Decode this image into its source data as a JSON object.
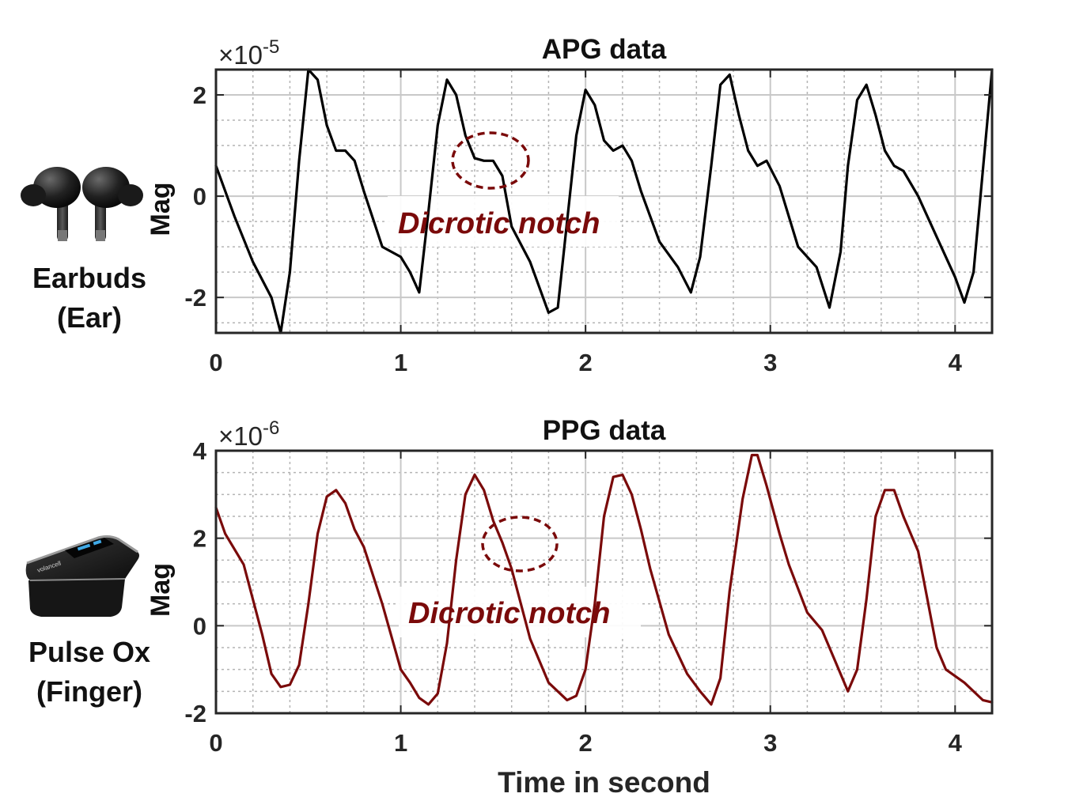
{
  "devices": [
    {
      "label_line1": "Earbuds",
      "label_line2": "(Ear)",
      "icon": "earbuds-icon"
    },
    {
      "label_line1": "Pulse Ox",
      "label_line2": "(Finger)",
      "icon": "pulse-oximeter-icon",
      "brand_text": "volancell"
    }
  ],
  "colors": {
    "apg_line": "#000000",
    "ppg_line": "#7a0a0a",
    "annotation": "#7a0a0a",
    "grid_major": "#c8c8c8",
    "grid_minor": "#b4b4b4"
  },
  "chart_data": [
    {
      "type": "line",
      "title": "APG data",
      "ylabel": "Mag",
      "xlabel": "",
      "exponent_label": "×10",
      "exponent_power": "-5",
      "xlim": [
        0,
        4.2
      ],
      "ylim": [
        -2.7,
        2.5
      ],
      "xticks": [
        0,
        1,
        2,
        3,
        4
      ],
      "yticks": [
        -2,
        0,
        2
      ],
      "grid": true,
      "minor_grid": true,
      "annotation": {
        "text": "Dicrotic notch",
        "marker": "dashed ellipse",
        "x": 1.5,
        "y": 0.75
      },
      "series": [
        {
          "color": "#000000",
          "x": [
            0,
            0.1,
            0.2,
            0.3,
            0.35,
            0.4,
            0.45,
            0.5,
            0.55,
            0.6,
            0.65,
            0.7,
            0.75,
            0.8,
            0.9,
            1.0,
            1.05,
            1.1,
            1.15,
            1.2,
            1.25,
            1.3,
            1.35,
            1.4,
            1.45,
            1.5,
            1.55,
            1.6,
            1.7,
            1.8,
            1.85,
            1.9,
            1.95,
            2.0,
            2.05,
            2.1,
            2.15,
            2.2,
            2.25,
            2.3,
            2.4,
            2.5,
            2.57,
            2.62,
            2.68,
            2.73,
            2.78,
            2.83,
            2.88,
            2.93,
            2.98,
            3.05,
            3.15,
            3.25,
            3.32,
            3.38,
            3.42,
            3.47,
            3.52,
            3.57,
            3.62,
            3.67,
            3.72,
            3.8,
            3.9,
            4.0,
            4.05,
            4.1,
            4.15,
            4.2
          ],
          "y": [
            0.6,
            -0.4,
            -1.3,
            -2.0,
            -2.7,
            -1.5,
            0.7,
            2.5,
            2.3,
            1.4,
            0.9,
            0.9,
            0.7,
            0.1,
            -1.0,
            -1.2,
            -1.5,
            -1.9,
            -0.3,
            1.4,
            2.3,
            2.0,
            1.2,
            0.75,
            0.7,
            0.7,
            0.4,
            -0.6,
            -1.3,
            -2.3,
            -2.2,
            -0.5,
            1.2,
            2.1,
            1.8,
            1.1,
            0.9,
            1.0,
            0.7,
            0.1,
            -0.9,
            -1.4,
            -1.9,
            -1.2,
            0.6,
            2.2,
            2.4,
            1.6,
            0.9,
            0.6,
            0.7,
            0.2,
            -1.0,
            -1.4,
            -2.2,
            -1.1,
            0.6,
            1.9,
            2.2,
            1.6,
            0.9,
            0.6,
            0.5,
            0.0,
            -0.8,
            -1.6,
            -2.1,
            -1.5,
            0.5,
            2.5
          ]
        }
      ]
    },
    {
      "type": "line",
      "title": "PPG data",
      "ylabel": "Mag",
      "xlabel": "Time in second",
      "exponent_label": "×10",
      "exponent_power": "-6",
      "xlim": [
        0,
        4.2
      ],
      "ylim": [
        -2,
        4
      ],
      "xticks": [
        0,
        1,
        2,
        3,
        4
      ],
      "yticks": [
        -2,
        0,
        2,
        4
      ],
      "grid": true,
      "minor_grid": true,
      "annotation": {
        "text": "Dicrotic notch",
        "marker": "dashed ellipse",
        "x": 1.65,
        "y": 1.9
      },
      "series": [
        {
          "color": "#7a0a0a",
          "x": [
            0,
            0.05,
            0.15,
            0.25,
            0.3,
            0.35,
            0.4,
            0.45,
            0.5,
            0.55,
            0.6,
            0.65,
            0.7,
            0.75,
            0.8,
            0.9,
            1.0,
            1.05,
            1.1,
            1.15,
            1.2,
            1.25,
            1.3,
            1.35,
            1.4,
            1.45,
            1.5,
            1.55,
            1.6,
            1.65,
            1.7,
            1.8,
            1.9,
            1.95,
            2.0,
            2.05,
            2.1,
            2.15,
            2.2,
            2.25,
            2.3,
            2.35,
            2.45,
            2.55,
            2.62,
            2.68,
            2.73,
            2.78,
            2.85,
            2.9,
            2.93,
            2.98,
            3.05,
            3.1,
            3.2,
            3.28,
            3.35,
            3.42,
            3.47,
            3.52,
            3.57,
            3.62,
            3.67,
            3.72,
            3.8,
            3.85,
            3.9,
            3.95,
            4.05,
            4.15,
            4.2
          ],
          "y": [
            2.7,
            2.1,
            1.4,
            -0.2,
            -1.1,
            -1.4,
            -1.35,
            -0.9,
            0.5,
            2.1,
            2.95,
            3.1,
            2.8,
            2.2,
            1.8,
            0.5,
            -1.0,
            -1.3,
            -1.65,
            -1.8,
            -1.55,
            -0.4,
            1.5,
            3.0,
            3.45,
            3.1,
            2.4,
            1.9,
            1.3,
            0.5,
            -0.3,
            -1.3,
            -1.7,
            -1.6,
            -1.0,
            0.5,
            2.5,
            3.4,
            3.45,
            3.0,
            2.2,
            1.3,
            -0.2,
            -1.1,
            -1.5,
            -1.8,
            -1.2,
            0.8,
            2.9,
            3.9,
            3.9,
            3.2,
            2.1,
            1.4,
            0.3,
            -0.1,
            -0.8,
            -1.5,
            -1.0,
            0.6,
            2.5,
            3.1,
            3.1,
            2.5,
            1.7,
            0.6,
            -0.5,
            -1.0,
            -1.3,
            -1.7,
            -1.75
          ]
        }
      ]
    }
  ]
}
